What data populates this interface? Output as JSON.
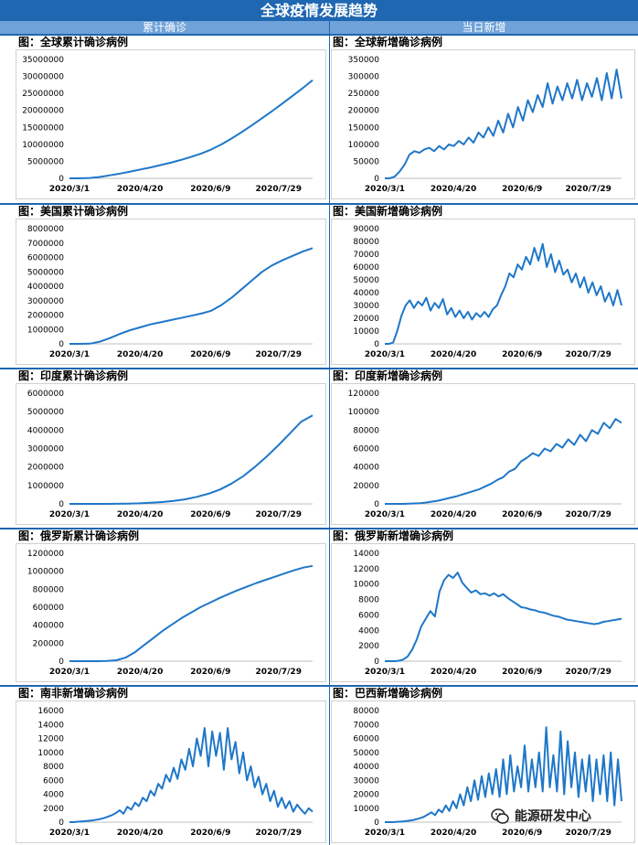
{
  "header": {
    "title": "全球疫情发展趋势",
    "left_column": "累计确诊",
    "right_column": "当日新增"
  },
  "date_ticks": [
    "2020/3/1",
    "2020/4/20",
    "2020/6/9",
    "2020/7/29"
  ],
  "watermark": {
    "text": "能源研发中心"
  },
  "chart_data": [
    {
      "type": "line",
      "title": "图：全球累计确诊病例",
      "ylim": [
        0,
        35000000
      ],
      "yticks": [
        "35000000",
        "30000000",
        "25000000",
        "20000000",
        "15000000",
        "10000000",
        "5000000",
        "0"
      ],
      "series": [
        {
          "name": "全球累计确诊",
          "values": [
            0,
            10000,
            100000,
            400000,
            900000,
            1400000,
            2000000,
            2600000,
            3200000,
            3900000,
            4600000,
            5400000,
            6300000,
            7300000,
            8500000,
            10000000,
            11700000,
            13600000,
            15600000,
            17700000,
            19800000,
            22000000,
            24200000,
            26500000,
            28900000
          ]
        }
      ]
    },
    {
      "type": "line",
      "title": "图：全球新增确诊病例",
      "ylim": [
        0,
        350000
      ],
      "yticks": [
        "350000",
        "300000",
        "250000",
        "200000",
        "150000",
        "100000",
        "50000",
        "0"
      ],
      "series": [
        {
          "name": "全球新增确诊",
          "values": [
            0,
            0,
            5000,
            20000,
            40000,
            70000,
            80000,
            75000,
            85000,
            90000,
            80000,
            95000,
            85000,
            100000,
            95000,
            110000,
            100000,
            120000,
            105000,
            135000,
            120000,
            150000,
            125000,
            170000,
            135000,
            190000,
            150000,
            210000,
            170000,
            230000,
            195000,
            245000,
            210000,
            280000,
            220000,
            270000,
            230000,
            280000,
            235000,
            290000,
            230000,
            280000,
            240000,
            295000,
            230000,
            310000,
            235000,
            320000,
            235000
          ]
        }
      ]
    },
    {
      "type": "line",
      "title": "图：美国累计确诊病例",
      "ylim": [
        0,
        8000000
      ],
      "yticks": [
        "8000000",
        "7000000",
        "6000000",
        "5000000",
        "4000000",
        "3000000",
        "2000000",
        "1000000",
        "0"
      ],
      "series": [
        {
          "name": "美国累计确诊",
          "values": [
            0,
            0,
            10000,
            150000,
            400000,
            700000,
            950000,
            1150000,
            1350000,
            1500000,
            1650000,
            1800000,
            1950000,
            2100000,
            2300000,
            2700000,
            3200000,
            3800000,
            4400000,
            5000000,
            5450000,
            5800000,
            6100000,
            6400000,
            6650000
          ]
        }
      ]
    },
    {
      "type": "line",
      "title": "图：美国新增确诊病例",
      "ylim": [
        0,
        90000
      ],
      "yticks": [
        "90000",
        "80000",
        "70000",
        "60000",
        "50000",
        "40000",
        "30000",
        "20000",
        "10000",
        "0"
      ],
      "series": [
        {
          "name": "美国新增确诊",
          "values": [
            0,
            0,
            1000,
            10000,
            22000,
            30000,
            34000,
            28000,
            33000,
            30000,
            36000,
            26000,
            32000,
            28000,
            35000,
            23000,
            28000,
            21000,
            26000,
            20000,
            25000,
            19000,
            24000,
            21000,
            25000,
            21000,
            27000,
            30000,
            38000,
            45000,
            55000,
            52000,
            62000,
            58000,
            68000,
            62000,
            75000,
            65000,
            78000,
            60000,
            70000,
            56000,
            65000,
            54000,
            58000,
            48000,
            55000,
            44000,
            52000,
            40000,
            48000,
            38000,
            45000,
            33000,
            40000,
            30000,
            42000,
            30000
          ]
        }
      ]
    },
    {
      "type": "line",
      "title": "图：印度累计确诊病例",
      "ylim": [
        0,
        6000000
      ],
      "yticks": [
        "6000000",
        "5000000",
        "4000000",
        "3000000",
        "2000000",
        "1000000",
        "0"
      ],
      "series": [
        {
          "name": "印度累计确诊",
          "values": [
            0,
            0,
            0,
            1000,
            5000,
            15000,
            30000,
            60000,
            100000,
            160000,
            250000,
            380000,
            550000,
            780000,
            1100000,
            1500000,
            2000000,
            2550000,
            3150000,
            3800000,
            4450000,
            4800000
          ]
        }
      ]
    },
    {
      "type": "line",
      "title": "图：印度新增确诊病例",
      "ylim": [
        0,
        120000
      ],
      "yticks": [
        "120000",
        "100000",
        "80000",
        "60000",
        "40000",
        "20000",
        "0"
      ],
      "series": [
        {
          "name": "印度新增确诊",
          "values": [
            0,
            0,
            0,
            0,
            200,
            500,
            800,
            1500,
            2500,
            3500,
            5000,
            6500,
            8000,
            10000,
            12000,
            14000,
            16000,
            19000,
            22000,
            26000,
            29000,
            35000,
            38000,
            46000,
            50000,
            55000,
            52000,
            60000,
            57000,
            65000,
            61000,
            70000,
            64000,
            75000,
            68000,
            80000,
            76000,
            88000,
            82000,
            92000,
            88000
          ]
        }
      ]
    },
    {
      "type": "line",
      "title": "图：俄罗斯累计确诊病例",
      "ylim": [
        0,
        1200000
      ],
      "yticks": [
        "1200000",
        "1000000",
        "800000",
        "600000",
        "400000",
        "200000",
        "0"
      ],
      "series": [
        {
          "name": "俄罗斯累计确诊",
          "values": [
            0,
            0,
            0,
            500,
            3000,
            10000,
            40000,
            100000,
            180000,
            260000,
            340000,
            410000,
            480000,
            540000,
            600000,
            650000,
            700000,
            745000,
            790000,
            830000,
            870000,
            905000,
            940000,
            975000,
            1010000,
            1040000,
            1060000
          ]
        }
      ]
    },
    {
      "type": "line",
      "title": "图：俄罗斯新增确诊病例",
      "ylim": [
        0,
        14000
      ],
      "yticks": [
        "14000",
        "12000",
        "10000",
        "8000",
        "6000",
        "4000",
        "2000",
        "0"
      ],
      "series": [
        {
          "name": "俄罗斯新增确诊",
          "values": [
            0,
            0,
            0,
            50,
            200,
            600,
            1500,
            2800,
            4500,
            5500,
            6500,
            5800,
            9000,
            10500,
            11200,
            10800,
            11500,
            10200,
            9500,
            8900,
            9200,
            8700,
            8800,
            8500,
            8800,
            8400,
            8700,
            8200,
            7800,
            7400,
            7000,
            6900,
            6700,
            6600,
            6400,
            6300,
            6100,
            5900,
            5800,
            5600,
            5400,
            5300,
            5200,
            5100,
            5000,
            4900,
            4800,
            4900,
            5100,
            5200,
            5300,
            5400,
            5500
          ]
        }
      ]
    },
    {
      "type": "line",
      "title": "图：南非新增确诊病例",
      "ylim": [
        0,
        16000
      ],
      "yticks": [
        "16000",
        "14000",
        "12000",
        "10000",
        "8000",
        "6000",
        "4000",
        "2000",
        "0"
      ],
      "series": [
        {
          "name": "南非新增确诊",
          "values": [
            0,
            0,
            50,
            100,
            150,
            200,
            250,
            350,
            450,
            600,
            800,
            1000,
            1300,
            1700,
            1200,
            2200,
            1800,
            2800,
            2300,
            3500,
            3000,
            4500,
            3800,
            5500,
            4800,
            6800,
            5800,
            7800,
            6200,
            9000,
            7500,
            10500,
            8000,
            12000,
            9500,
            13500,
            8000,
            13000,
            9500,
            12800,
            7500,
            13500,
            9000,
            11500,
            7000,
            10000,
            6000,
            8000,
            5000,
            6500,
            4000,
            5500,
            3000,
            4500,
            2200,
            3500,
            2000,
            3000,
            1500,
            2500,
            1800,
            1200,
            2000,
            1500
          ]
        }
      ]
    },
    {
      "type": "line",
      "title": "图：巴西新增确诊病例",
      "ylim": [
        0,
        80000
      ],
      "yticks": [
        "80000",
        "70000",
        "60000",
        "50000",
        "40000",
        "30000",
        "20000",
        "10000",
        "0"
      ],
      "series": [
        {
          "name": "巴西新增确诊",
          "values": [
            0,
            0,
            0,
            100,
            300,
            500,
            800,
            1200,
            1600,
            2200,
            3000,
            4000,
            5500,
            7000,
            5000,
            9000,
            7000,
            12000,
            8000,
            15000,
            10000,
            20000,
            12000,
            25000,
            15000,
            30000,
            16000,
            33000,
            18000,
            35000,
            20000,
            38000,
            18000,
            45000,
            20000,
            48000,
            22000,
            40000,
            25000,
            55000,
            22000,
            45000,
            25000,
            50000,
            22000,
            68000,
            25000,
            48000,
            22000,
            65000,
            20000,
            58000,
            25000,
            50000,
            18000,
            45000,
            22000,
            48000,
            15000,
            45000,
            20000,
            48000,
            15000,
            50000,
            12000,
            45000,
            15000
          ]
        }
      ]
    }
  ]
}
